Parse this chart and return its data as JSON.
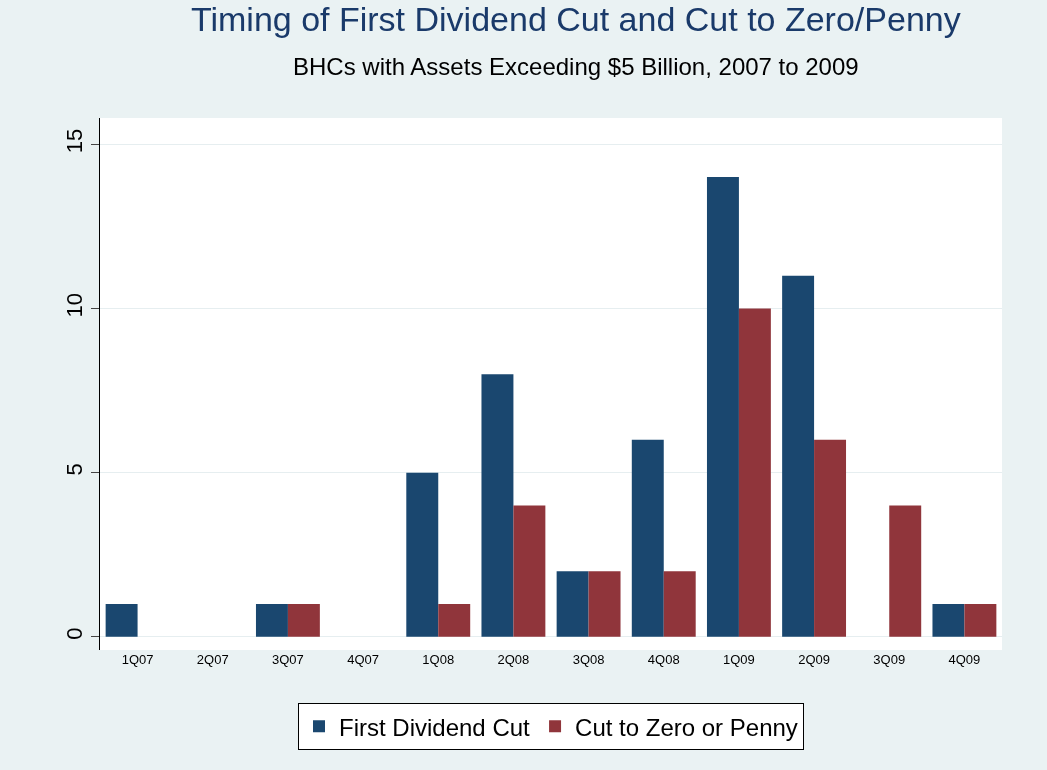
{
  "chart_data": {
    "type": "bar",
    "title": "Timing of First Dividend Cut and Cut to Zero/Penny",
    "subtitle": "BHCs with Assets Exceeding $5 Billion, 2007 to 2009",
    "categories": [
      "1Q07",
      "2Q07",
      "3Q07",
      "4Q07",
      "1Q08",
      "2Q08",
      "3Q08",
      "4Q08",
      "1Q09",
      "2Q09",
      "3Q09",
      "4Q09"
    ],
    "series": [
      {
        "name": "First Dividend Cut",
        "color": "#1a476f",
        "values": [
          1,
          0,
          1,
          0,
          5,
          8,
          2,
          6,
          14,
          11,
          0,
          1
        ]
      },
      {
        "name": "Cut to Zero or Penny",
        "color": "#90353b",
        "values": [
          0,
          0,
          1,
          0,
          1,
          4,
          2,
          2,
          10,
          6,
          4,
          1
        ]
      }
    ],
    "ylim": [
      -0.4,
      15.8
    ],
    "yticks": [
      0,
      5,
      10,
      15
    ],
    "grid": "y",
    "legend": "bottom"
  }
}
